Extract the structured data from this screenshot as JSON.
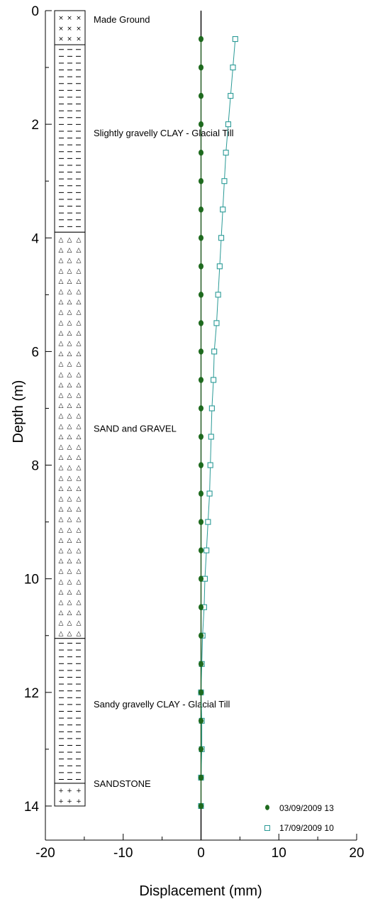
{
  "chart_data": {
    "type": "scatter",
    "title": "",
    "xlabel": "Displacement (mm)",
    "ylabel": "Depth (m)",
    "xlim": [
      -20,
      20
    ],
    "ylim": [
      14.6,
      0
    ],
    "x_ticks": [
      "-20",
      "-10",
      "0",
      "10",
      "20"
    ],
    "y_ticks": [
      "0",
      "2",
      "4",
      "6",
      "8",
      "10",
      "12",
      "14"
    ],
    "legend_position": "bottom-right",
    "colors": {
      "series1": "#1e6a1e",
      "series2": "#2a9a96"
    },
    "series": [
      {
        "name": "03/09/2009 13",
        "marker": "filled-circle",
        "depth": [
          0.5,
          1.0,
          1.5,
          2.0,
          2.5,
          3.0,
          3.5,
          4.0,
          4.5,
          5.0,
          5.5,
          6.0,
          6.5,
          7.0,
          7.5,
          8.0,
          8.5,
          9.0,
          9.5,
          10.0,
          10.5,
          11.0,
          11.5,
          12.0,
          12.5,
          13.0,
          13.5,
          14.0
        ],
        "displacement": [
          0,
          0,
          0,
          0,
          0,
          0,
          0,
          0,
          0,
          0,
          0,
          0,
          0,
          0,
          0,
          0,
          0,
          0,
          0,
          0,
          0,
          0,
          0,
          0,
          0,
          0,
          0,
          0
        ]
      },
      {
        "name": "17/09/2009 10",
        "marker": "open-square",
        "depth": [
          0.5,
          1.0,
          1.5,
          2.0,
          2.5,
          3.0,
          3.5,
          4.0,
          4.5,
          5.0,
          5.5,
          6.0,
          6.5,
          7.0,
          7.5,
          8.0,
          8.5,
          9.0,
          9.5,
          10.0,
          10.5,
          11.0,
          11.5,
          12.0,
          12.5,
          13.0,
          13.5,
          14.0
        ],
        "displacement": [
          4.4,
          4.1,
          3.8,
          3.5,
          3.2,
          3.0,
          2.8,
          2.6,
          2.4,
          2.2,
          2.0,
          1.7,
          1.6,
          1.4,
          1.3,
          1.2,
          1.1,
          0.9,
          0.7,
          0.5,
          0.4,
          0.2,
          0.1,
          0.0,
          0.1,
          0.1,
          0.0,
          0.0
        ]
      }
    ],
    "strata": [
      {
        "label": "Made Ground",
        "top": 0,
        "bottom": 0.6,
        "pattern": "x",
        "label_depth": 0.15
      },
      {
        "label": "Slightly gravelly CLAY - Glacial Till",
        "top": 0.6,
        "bottom": 3.9,
        "pattern": "dash",
        "label_depth": 2.15
      },
      {
        "label": "SAND and GRAVEL",
        "top": 3.9,
        "bottom": 11.05,
        "pattern": "triangle",
        "label_depth": 7.35
      },
      {
        "label": "Sandy gravelly CLAY - Glacial Till",
        "top": 11.05,
        "bottom": 13.6,
        "pattern": "dash",
        "label_depth": 12.2
      },
      {
        "label": "SANDSTONE",
        "top": 13.6,
        "bottom": 14.0,
        "pattern": "plus",
        "label_depth": 13.6
      }
    ]
  }
}
